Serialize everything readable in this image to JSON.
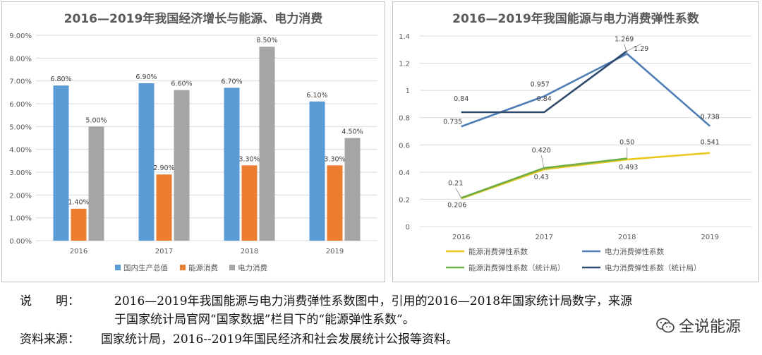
{
  "chart_data": [
    {
      "type": "bar",
      "title": "2016—2019年我国经济增长与能源、电力消费",
      "categories": [
        "2016",
        "2017",
        "2018",
        "2019"
      ],
      "series": [
        {
          "name": "国内生产总值",
          "values": [
            6.8,
            6.9,
            6.7,
            6.1
          ],
          "labels": [
            "6.80%",
            "6.90%",
            "6.70%",
            "6.10%"
          ],
          "color": "#5b9bd5"
        },
        {
          "name": "能源消费",
          "values": [
            1.4,
            2.9,
            3.3,
            3.3
          ],
          "labels": [
            "1.40%",
            "2.90%",
            "3.30%",
            "3.30%"
          ],
          "color": "#ed7d31"
        },
        {
          "name": "电力消费",
          "values": [
            5.0,
            6.6,
            8.5,
            4.5
          ],
          "labels": [
            "5.00%",
            "6.60%",
            "8.50%",
            "4.50%"
          ],
          "color": "#a5a5a5"
        }
      ],
      "ylim": [
        0,
        9
      ],
      "yticks": [
        "0.00%",
        "1.00%",
        "2.00%",
        "3.00%",
        "4.00%",
        "5.00%",
        "6.00%",
        "7.00%",
        "8.00%",
        "9.00%"
      ],
      "legend_position": "bottom",
      "grid": true
    },
    {
      "type": "line",
      "title": "2016—2019年我国能源与电力消费弹性系数",
      "categories": [
        "2016",
        "2017",
        "2018",
        "2019"
      ],
      "series": [
        {
          "name": "能源消费弹性系数",
          "values": [
            0.206,
            0.42,
            0.493,
            0.541
          ],
          "labels": [
            "0.206",
            "0.420",
            "0.493",
            "0.541"
          ],
          "color": "#e8c81e"
        },
        {
          "name": "电力消费弹性系数",
          "values": [
            0.735,
            0.957,
            1.269,
            0.738
          ],
          "labels": [
            "0.735",
            "0.957",
            "1.269",
            "0.738"
          ],
          "color": "#4f7db5"
        },
        {
          "name": "能源消费弹性系数（统计局）",
          "values": [
            0.21,
            0.43,
            0.5,
            null
          ],
          "labels": [
            "0.21",
            "0.43",
            "0.50",
            ""
          ],
          "color": "#70ad47"
        },
        {
          "name": "电力消费弹性系数（统计局）",
          "values": [
            0.84,
            0.84,
            1.29,
            null
          ],
          "labels": [
            "0.84",
            "0.84",
            "1.29",
            ""
          ],
          "color": "#2e4a6e"
        }
      ],
      "ylim": [
        0,
        1.4
      ],
      "yticks": [
        "0",
        "0.2",
        "0.4",
        "0.6",
        "0.8",
        "1",
        "1.2",
        "1.4"
      ],
      "legend_position": "bottom",
      "grid": true
    }
  ],
  "notes": {
    "label": "说　　明：",
    "line1": "2016—2019年我国能源与电力消费弹性系数图中，引用的2016—2018年国家统计局数字，来源",
    "line2": "于国家统计局官网“国家数据”栏目下的“能源弹性系数”。",
    "source_label": "资料来源：",
    "source_text": "国家统计局，2016--2019年国民经济和社会发展统计公报等资料。"
  },
  "watermark": {
    "text": "全说能源",
    "icon": "wechat-icon"
  }
}
